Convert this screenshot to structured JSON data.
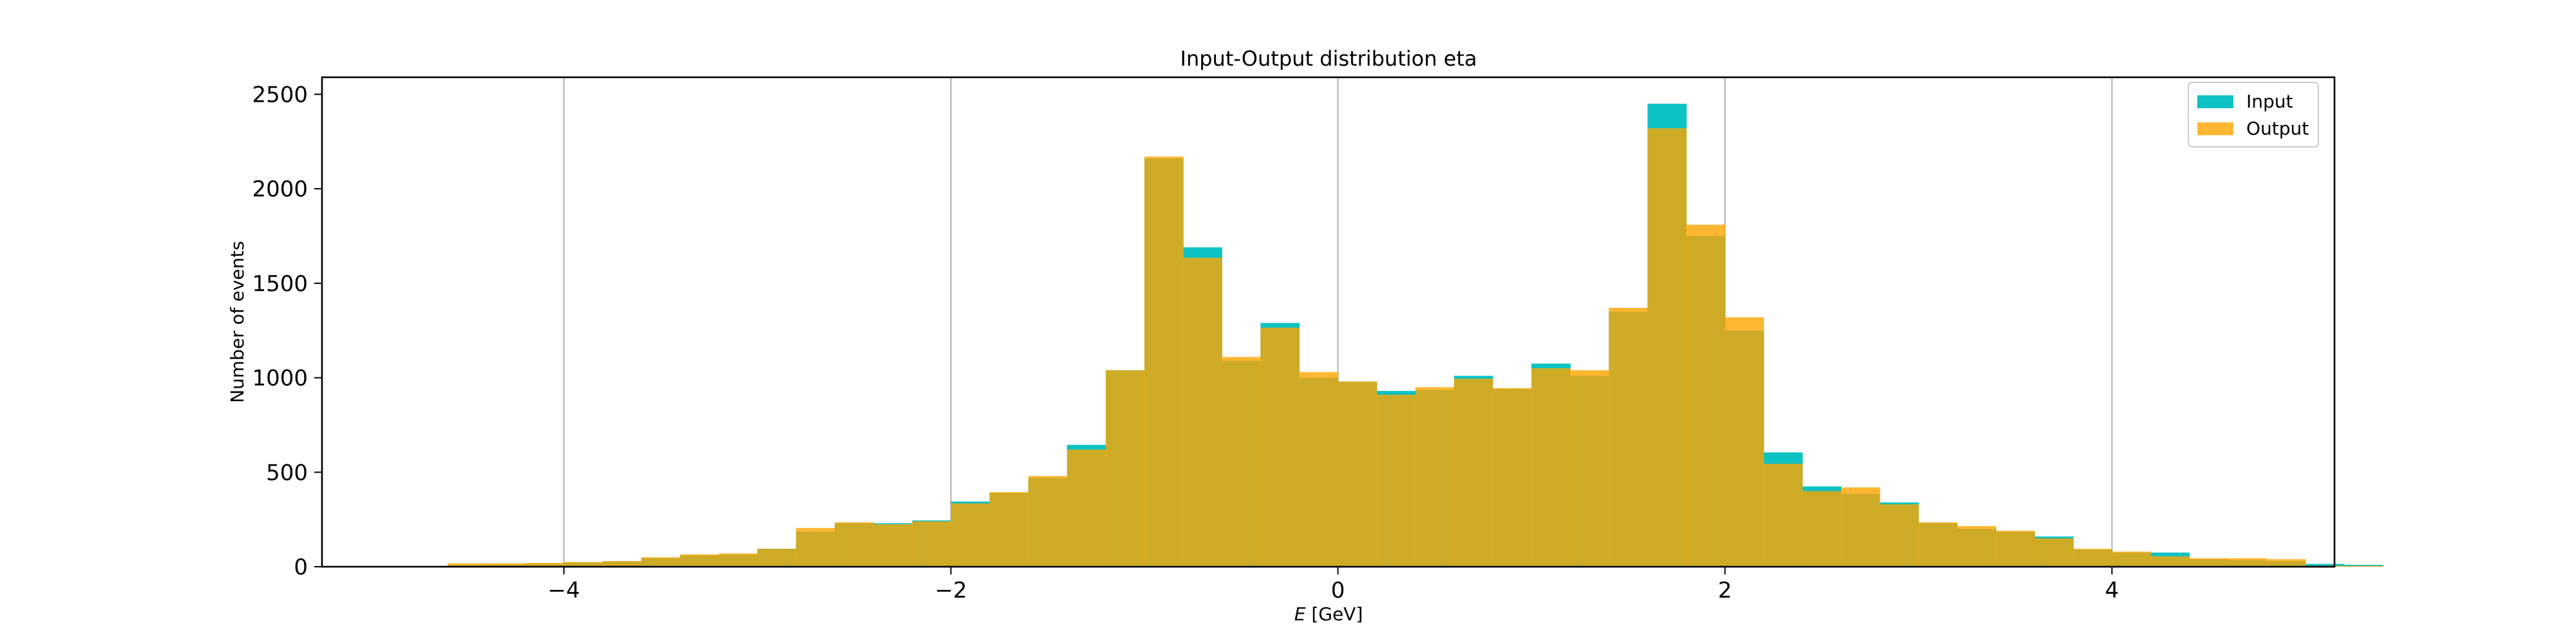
{
  "chart_data": {
    "type": "histogram",
    "title": "Input-Output distribution eta",
    "xlabel_italic": "E",
    "xlabel_rest": " [GeV]",
    "ylabel": "Number of events",
    "xlim": [
      -5.25,
      5.15
    ],
    "ylim": [
      0,
      2590
    ],
    "xticks": [
      -4,
      -2,
      0,
      2,
      4
    ],
    "xtick_labels": [
      "−4",
      "−2",
      "0",
      "2",
      "4"
    ],
    "yticks": [
      0,
      500,
      1000,
      1500,
      2000,
      2500
    ],
    "ytick_labels": [
      "0",
      "500",
      "1000",
      "1500",
      "2000",
      "2500"
    ],
    "grid": "vertical",
    "legend_position": "top-right",
    "bin_start": -4.6,
    "bin_width": 0.2,
    "series": [
      {
        "name": "Input",
        "color": "#00bfbf",
        "values": [
          10,
          12,
          15,
          22,
          28,
          45,
          60,
          65,
          95,
          185,
          230,
          230,
          245,
          345,
          390,
          470,
          645,
          1040,
          2160,
          1690,
          1090,
          1290,
          1000,
          980,
          930,
          935,
          1010,
          940,
          1075,
          1010,
          1350,
          2450,
          1750,
          1250,
          605,
          425,
          385,
          340,
          230,
          200,
          185,
          160,
          90,
          75,
          75,
          40,
          35,
          30,
          15,
          10
        ]
      },
      {
        "name": "Output",
        "color": "#ffa500",
        "values": [
          18,
          18,
          20,
          25,
          30,
          50,
          65,
          70,
          95,
          205,
          235,
          225,
          240,
          335,
          395,
          480,
          620,
          1040,
          2170,
          1635,
          1110,
          1265,
          1030,
          980,
          910,
          950,
          995,
          945,
          1050,
          1040,
          1370,
          2320,
          1810,
          1320,
          545,
          400,
          420,
          330,
          235,
          215,
          190,
          150,
          95,
          80,
          55,
          45,
          45,
          40,
          5,
          5
        ]
      }
    ]
  }
}
